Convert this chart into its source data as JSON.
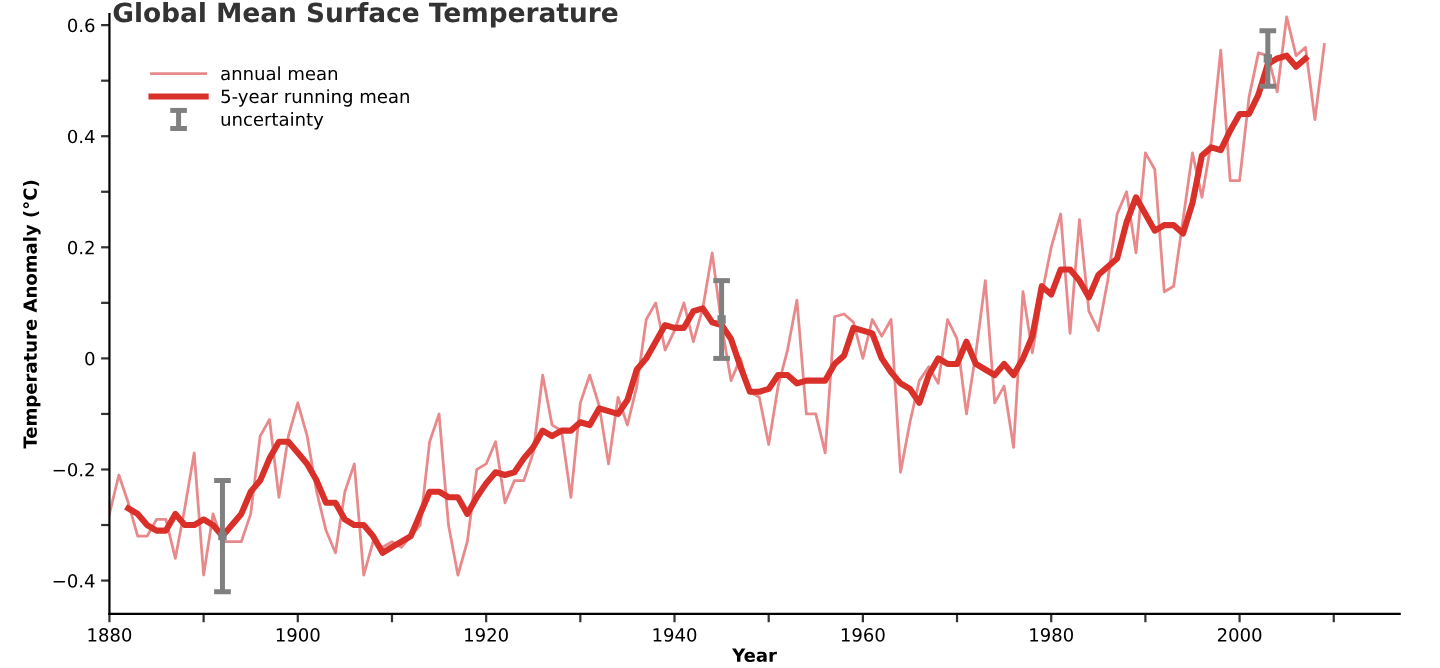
{
  "chart_data": {
    "type": "line",
    "title": "Global Mean Surface Temperature",
    "xlabel": "Year",
    "ylabel": "Temperature Anomaly (°C)",
    "xlim": [
      1880,
      2017
    ],
    "xticks": [
      1880,
      {
        "value": 1890,
        "label": null
      },
      1900,
      {
        "value": 1910,
        "label": null
      },
      1920,
      {
        "value": 1930,
        "label": null
      },
      1940,
      {
        "value": 1950,
        "label": null
      },
      1960,
      {
        "value": 1970,
        "label": null
      },
      1980,
      {
        "value": 1990,
        "label": null
      },
      2000,
      {
        "value": 2010,
        "label": null
      }
    ],
    "ylim": [
      -0.46,
      0.62
    ],
    "yticks": [
      {
        "value": -0.4,
        "label": "−0.4"
      },
      {
        "value": -0.3,
        "label": null
      },
      {
        "value": -0.2,
        "label": "−0.2"
      },
      {
        "value": -0.1,
        "label": null
      },
      0,
      {
        "value": 0.1,
        "label": null
      },
      0.2,
      {
        "value": 0.3,
        "label": null
      },
      0.4,
      {
        "value": 0.5,
        "label": null
      },
      0.6
    ],
    "grid": false,
    "legend": "top left",
    "marker": "none",
    "line_style": "solid",
    "series": [
      {
        "name": "annual mean",
        "color": "#e8898b",
        "x": [
          1880,
          1881,
          1882,
          1883,
          1884,
          1885,
          1886,
          1887,
          1888,
          1889,
          1890,
          1891,
          1892,
          1893,
          1894,
          1895,
          1896,
          1897,
          1898,
          1899,
          1900,
          1901,
          1902,
          1903,
          1904,
          1905,
          1906,
          1907,
          1908,
          1909,
          1910,
          1911,
          1912,
          1913,
          1914,
          1915,
          1916,
          1917,
          1918,
          1919,
          1920,
          1921,
          1922,
          1923,
          1924,
          1925,
          1926,
          1927,
          1928,
          1929,
          1930,
          1931,
          1932,
          1933,
          1934,
          1935,
          1936,
          1937,
          1938,
          1939,
          1940,
          1941,
          1942,
          1943,
          1944,
          1945,
          1946,
          1947,
          1948,
          1949,
          1950,
          1951,
          1952,
          1953,
          1954,
          1955,
          1956,
          1957,
          1958,
          1959,
          1960,
          1961,
          1962,
          1963,
          1964,
          1965,
          1966,
          1967,
          1968,
          1969,
          1970,
          1971,
          1972,
          1973,
          1974,
          1975,
          1976,
          1977,
          1978,
          1979,
          1980,
          1981,
          1982,
          1983,
          1984,
          1985,
          1986,
          1987,
          1988,
          1989,
          1990,
          1991,
          1992,
          1993,
          1994,
          1995,
          1996,
          1997,
          1998,
          1999,
          2000,
          2001,
          2002,
          2003,
          2004,
          2005,
          2006,
          2007,
          2008,
          2009
        ],
        "values": [
          -0.28,
          -0.21,
          -0.26,
          -0.32,
          -0.32,
          -0.29,
          -0.29,
          -0.36,
          -0.27,
          -0.17,
          -0.39,
          -0.28,
          -0.33,
          -0.33,
          -0.33,
          -0.28,
          -0.14,
          -0.11,
          -0.25,
          -0.14,
          -0.08,
          -0.14,
          -0.24,
          -0.31,
          -0.35,
          -0.24,
          -0.19,
          -0.39,
          -0.33,
          -0.34,
          -0.33,
          -0.34,
          -0.32,
          -0.3,
          -0.15,
          -0.1,
          -0.3,
          -0.39,
          -0.33,
          -0.2,
          -0.19,
          -0.15,
          -0.26,
          -0.22,
          -0.22,
          -0.17,
          -0.03,
          -0.12,
          -0.13,
          -0.25,
          -0.08,
          -0.03,
          -0.085,
          -0.19,
          -0.07,
          -0.12,
          -0.05,
          0.07,
          0.1,
          0.015,
          0.05,
          0.1,
          0.03,
          0.09,
          0.19,
          0.06,
          -0.04,
          0.0,
          -0.06,
          -0.07,
          -0.155,
          -0.05,
          0.015,
          0.105,
          -0.1,
          -0.1,
          -0.17,
          0.075,
          0.08,
          0.065,
          0.0,
          0.07,
          0.04,
          0.07,
          -0.205,
          -0.115,
          -0.04,
          -0.015,
          -0.045,
          0.07,
          0.035,
          -0.1,
          0.01,
          0.14,
          -0.08,
          -0.05,
          -0.16,
          0.12,
          0.01,
          0.115,
          0.2,
          0.26,
          0.045,
          0.25,
          0.085,
          0.05,
          0.14,
          0.26,
          0.3,
          0.19,
          0.37,
          0.34,
          0.12,
          0.13,
          0.25,
          0.37,
          0.29,
          0.39,
          0.555,
          0.32,
          0.32,
          0.47,
          0.55,
          0.545,
          0.48,
          0.615,
          0.545,
          0.56,
          0.43,
          0.565
        ]
      },
      {
        "name": "5-year running mean",
        "color": "#d9302a",
        "x": [
          1882,
          1883,
          1884,
          1885,
          1886,
          1887,
          1888,
          1889,
          1890,
          1891,
          1892,
          1893,
          1894,
          1895,
          1896,
          1897,
          1898,
          1899,
          1900,
          1901,
          1902,
          1903,
          1904,
          1905,
          1906,
          1907,
          1908,
          1909,
          1910,
          1911,
          1912,
          1913,
          1914,
          1915,
          1916,
          1917,
          1918,
          1919,
          1920,
          1921,
          1922,
          1923,
          1924,
          1925,
          1926,
          1927,
          1928,
          1929,
          1930,
          1931,
          1932,
          1933,
          1934,
          1935,
          1936,
          1937,
          1938,
          1939,
          1940,
          1941,
          1942,
          1943,
          1944,
          1945,
          1946,
          1947,
          1948,
          1949,
          1950,
          1951,
          1952,
          1953,
          1954,
          1955,
          1956,
          1957,
          1958,
          1959,
          1960,
          1961,
          1962,
          1963,
          1964,
          1965,
          1966,
          1967,
          1968,
          1969,
          1970,
          1971,
          1972,
          1973,
          1974,
          1975,
          1976,
          1977,
          1978,
          1979,
          1980,
          1981,
          1982,
          1983,
          1984,
          1985,
          1986,
          1987,
          1988,
          1989,
          1990,
          1991,
          1992,
          1993,
          1994,
          1995,
          1996,
          1997,
          1998,
          1999,
          2000,
          2001,
          2002,
          2003,
          2004,
          2005,
          2006,
          2007
        ],
        "values": [
          -0.27,
          -0.28,
          -0.3,
          -0.31,
          -0.31,
          -0.28,
          -0.3,
          -0.3,
          -0.29,
          -0.3,
          -0.32,
          -0.3,
          -0.28,
          -0.24,
          -0.22,
          -0.18,
          -0.15,
          -0.15,
          -0.17,
          -0.19,
          -0.22,
          -0.26,
          -0.26,
          -0.29,
          -0.3,
          -0.3,
          -0.32,
          -0.35,
          -0.34,
          -0.33,
          -0.32,
          -0.28,
          -0.24,
          -0.24,
          -0.25,
          -0.25,
          -0.28,
          -0.25,
          -0.225,
          -0.205,
          -0.21,
          -0.205,
          -0.18,
          -0.16,
          -0.13,
          -0.14,
          -0.13,
          -0.13,
          -0.115,
          -0.12,
          -0.09,
          -0.095,
          -0.1,
          -0.075,
          -0.02,
          0.0,
          0.03,
          0.06,
          0.055,
          0.055,
          0.085,
          0.09,
          0.065,
          0.06,
          0.035,
          -0.015,
          -0.06,
          -0.06,
          -0.055,
          -0.03,
          -0.03,
          -0.045,
          -0.04,
          -0.04,
          -0.04,
          -0.01,
          0.005,
          0.055,
          0.05,
          0.045,
          0.0,
          -0.025,
          -0.045,
          -0.055,
          -0.08,
          -0.03,
          0.0,
          -0.01,
          -0.01,
          0.03,
          -0.01,
          -0.02,
          -0.03,
          -0.01,
          -0.03,
          0.0,
          0.04,
          0.13,
          0.115,
          0.16,
          0.16,
          0.14,
          0.11,
          0.15,
          0.165,
          0.18,
          0.245,
          0.29,
          0.26,
          0.23,
          0.24,
          0.24,
          0.225,
          0.28,
          0.365,
          0.38,
          0.375,
          0.41,
          0.44,
          0.44,
          0.475,
          0.53,
          0.54,
          0.545,
          0.525,
          0.54
        ]
      },
      {
        "name": "uncertainty",
        "type": "scatter",
        "marker": "square",
        "color": "#808080",
        "x": [
          1892,
          1945,
          2003
        ],
        "values": [
          -0.32,
          0.07,
          0.54
        ],
        "errors": [
          0.1,
          0.07,
          0.05
        ]
      }
    ]
  }
}
